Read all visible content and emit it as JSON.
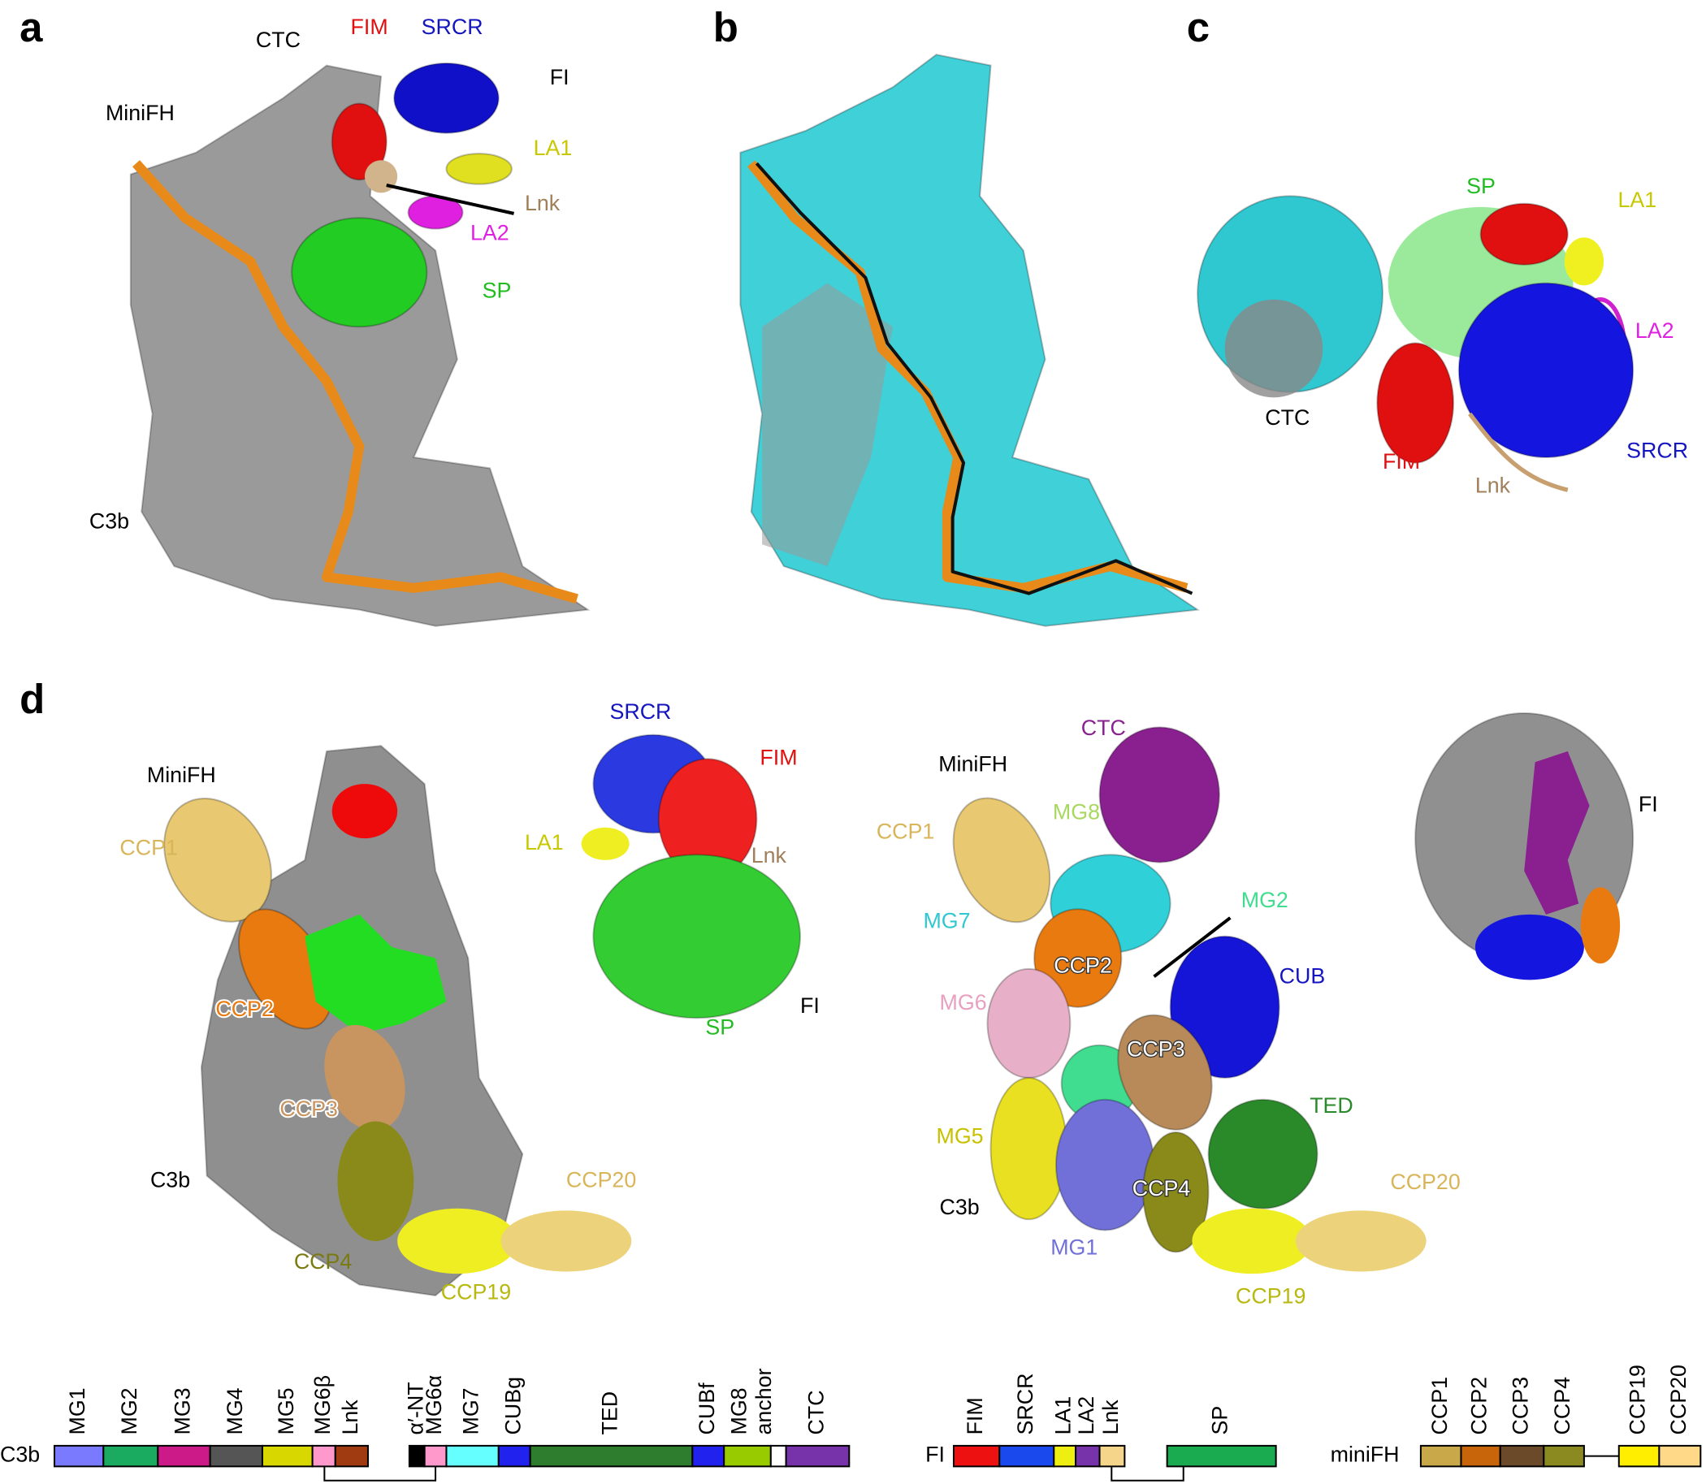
{
  "panels": {
    "a": {
      "letter": "a",
      "labels": [
        "CTC",
        "FIM",
        "SRCR",
        "FI",
        "MiniFH",
        "LA1",
        "Lnk",
        "LA2",
        "SP",
        "C3b"
      ]
    },
    "b": {
      "letter": "b"
    },
    "c": {
      "letter": "c",
      "labels": [
        "SP",
        "LA1",
        "LA2",
        "CTC",
        "FIM",
        "SRCR",
        "Lnk"
      ]
    },
    "d": {
      "letter": "d",
      "left": [
        "MiniFH",
        "CCP1",
        "CCP2",
        "CCP3",
        "C3b",
        "CCP20",
        "CCP4",
        "CCP19"
      ],
      "fi": [
        "SRCR",
        "FIM",
        "LA1",
        "Lnk",
        "FI",
        "SP"
      ],
      "right": [
        "CTC",
        "MiniFH",
        "MG8",
        "CCP1",
        "MG2",
        "MG7",
        "CCP2",
        "CUB",
        "MG6",
        "CCP3",
        "TED",
        "MG5",
        "CCP20",
        "CCP4",
        "C3b",
        "MG1",
        "CCP19"
      ],
      "fi_right": [
        "FI"
      ]
    }
  },
  "domain_maps": [
    {
      "name": "C3b",
      "domains": [
        "MG1",
        "MG2",
        "MG3",
        "MG4",
        "MG5",
        "MG6β",
        "Lnk",
        "α′-NT",
        "MG6α",
        "MG7",
        "CUBg",
        "TED",
        "CUBf",
        "MG8",
        "anchor",
        "CTC"
      ]
    },
    {
      "name": "FI",
      "domains": [
        "FIM",
        "SRCR",
        "LA1",
        "LA2",
        "Lnk",
        "SP"
      ]
    },
    {
      "name": "miniFH",
      "domains": [
        "CCP1",
        "CCP2",
        "CCP3",
        "CCP4",
        "CCP19",
        "CCP20"
      ]
    }
  ]
}
